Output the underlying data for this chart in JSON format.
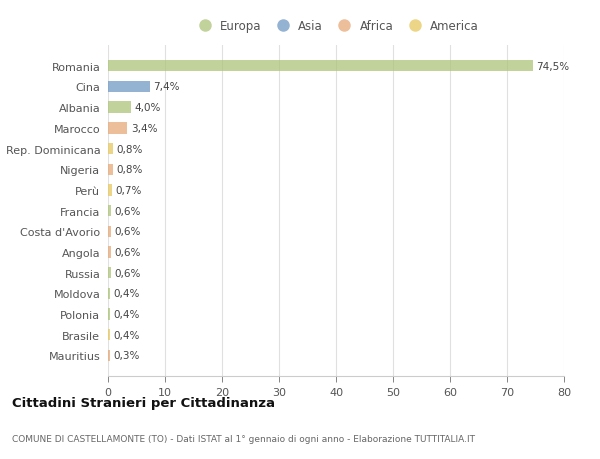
{
  "categories": [
    "Romania",
    "Cina",
    "Albania",
    "Marocco",
    "Rep. Dominicana",
    "Nigeria",
    "Perù",
    "Francia",
    "Costa d'Avorio",
    "Angola",
    "Russia",
    "Moldova",
    "Polonia",
    "Brasile",
    "Mauritius"
  ],
  "values": [
    74.5,
    7.4,
    4.0,
    3.4,
    0.8,
    0.8,
    0.7,
    0.6,
    0.6,
    0.6,
    0.6,
    0.4,
    0.4,
    0.4,
    0.3
  ],
  "labels": [
    "74,5%",
    "7,4%",
    "4,0%",
    "3,4%",
    "0,8%",
    "0,8%",
    "0,7%",
    "0,6%",
    "0,6%",
    "0,6%",
    "0,6%",
    "0,4%",
    "0,4%",
    "0,4%",
    "0,3%"
  ],
  "colors": [
    "#adc47a",
    "#7098c4",
    "#adc47a",
    "#e8a878",
    "#e8c860",
    "#e8a878",
    "#e8c860",
    "#adc47a",
    "#e8a878",
    "#e8a878",
    "#adc47a",
    "#adc47a",
    "#adc47a",
    "#e8c860",
    "#e8a878"
  ],
  "legend": [
    {
      "label": "Europa",
      "color": "#adc47a"
    },
    {
      "label": "Asia",
      "color": "#7098c4"
    },
    {
      "label": "Africa",
      "color": "#e8a878"
    },
    {
      "label": "America",
      "color": "#e8c860"
    }
  ],
  "title": "Cittadini Stranieri per Cittadinanza",
  "subtitle": "COMUNE DI CASTELLAMONTE (TO) - Dati ISTAT al 1° gennaio di ogni anno - Elaborazione TUTTITALIA.IT",
  "xlim": [
    0,
    80
  ],
  "xticks": [
    0,
    10,
    20,
    30,
    40,
    50,
    60,
    70,
    80
  ],
  "bg_color": "#ffffff",
  "grid_color": "#e0e0e0",
  "bar_height": 0.55
}
